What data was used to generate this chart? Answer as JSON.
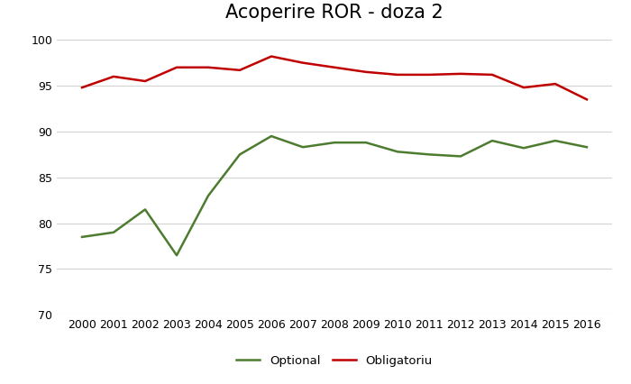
{
  "title": "Acoperire ROR - doza 2",
  "years": [
    2000,
    2001,
    2002,
    2003,
    2004,
    2005,
    2006,
    2007,
    2008,
    2009,
    2010,
    2011,
    2012,
    2013,
    2014,
    2015,
    2016
  ],
  "optional": [
    78.5,
    79.0,
    81.5,
    76.5,
    83.0,
    87.5,
    89.5,
    88.3,
    88.8,
    88.8,
    87.8,
    87.5,
    87.3,
    89.0,
    88.2,
    89.0,
    88.3
  ],
  "obligatoriu": [
    94.8,
    96.0,
    95.5,
    97.0,
    97.0,
    96.7,
    98.2,
    97.5,
    97.0,
    96.5,
    96.2,
    96.2,
    96.3,
    96.2,
    94.8,
    95.2,
    93.5
  ],
  "optional_color": "#4d7c30",
  "obligatoriu_color": "#c00000",
  "optional_label": "Optional",
  "obligatoriu_label": "Obligatoriu",
  "ylim": [
    70,
    101
  ],
  "yticks": [
    70,
    75,
    80,
    85,
    90,
    95,
    100
  ],
  "background_color": "#ffffff",
  "grid_color": "#d3d3d3",
  "line_width": 1.8,
  "title_fontsize": 15,
  "tick_fontsize": 9
}
